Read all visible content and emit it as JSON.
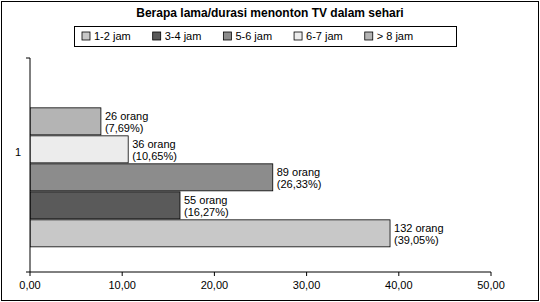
{
  "chart_data": {
    "type": "bar",
    "orientation": "horizontal",
    "title": "Berapa lama/durasi menonton TV dalam sehari",
    "categories": [
      "1"
    ],
    "series": [
      {
        "name": "1-2 jam",
        "color": "#c8c8c8",
        "values": [
          39.05
        ],
        "value_labels": [
          "132 orang (39,05%)"
        ]
      },
      {
        "name": "3-4 jam",
        "color": "#5a5a5a",
        "values": [
          16.27
        ],
        "value_labels": [
          "55 orang (16,27%)"
        ]
      },
      {
        "name": "5-6 jam",
        "color": "#8c8c8c",
        "values": [
          26.33
        ],
        "value_labels": [
          "89 orang (26,33%)"
        ]
      },
      {
        "name": "6-7 jam",
        "color": "#ececec",
        "values": [
          10.65
        ],
        "value_labels": [
          "36 orang (10,65%)"
        ]
      },
      {
        "name": "> 8 jam",
        "color": "#b4b4b4",
        "values": [
          7.69
        ],
        "value_labels": [
          "26 orang (7,69%)"
        ]
      }
    ],
    "xlim": [
      0,
      50
    ],
    "xticks": [
      {
        "value": 0,
        "label": "0,00"
      },
      {
        "value": 10,
        "label": "10,00"
      },
      {
        "value": 20,
        "label": "20,00"
      },
      {
        "value": 30,
        "label": "30,00"
      },
      {
        "value": 40,
        "label": "40,00"
      },
      {
        "value": 50,
        "label": "50,00"
      }
    ],
    "grid": false,
    "legend": "top",
    "data_labels": true
  }
}
